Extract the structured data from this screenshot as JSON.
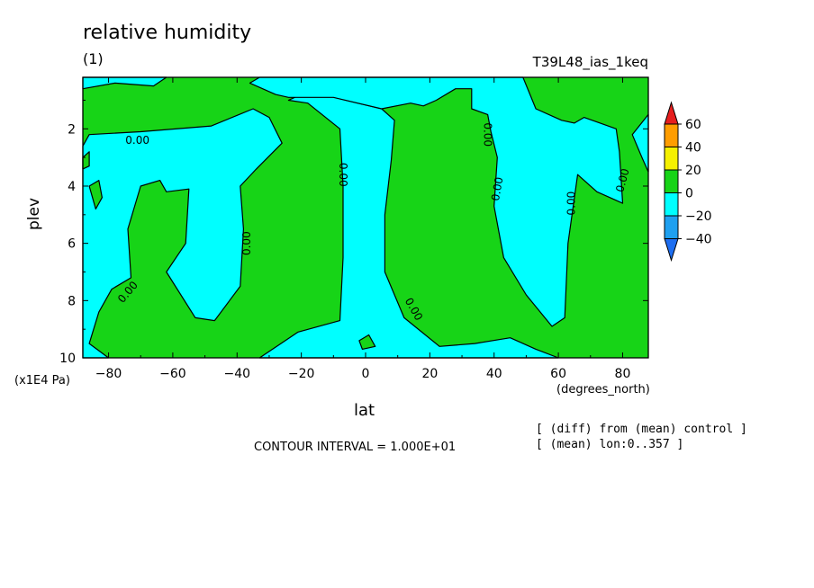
{
  "title": "relative humidity",
  "subtitle": "(1)",
  "experiment": "T39L48_ias_1keq",
  "contour_interval": "CONTOUR INTERVAL = 1.000E+01",
  "notes": [
    "[ (diff) from (mean) control ]",
    "[ (mean) lon:0..357 ]"
  ],
  "colors": {
    "below_m40": "#1e6ef0",
    "m40_m20": "#1fa0f0",
    "m20_0": "#00ffff",
    "0_20": "#17d417",
    "20_40": "#f5f000",
    "40_60": "#ff9d00",
    "above_60": "#e61e1e",
    "contour": "#000000"
  },
  "chart_data": {
    "type": "heatmap",
    "xlabel": "lat",
    "xunit": "(degrees_north)",
    "ylabel": "plev",
    "yunit": "(x1E4 Pa)",
    "xlim": [
      -88,
      88
    ],
    "ylim": [
      10,
      0.2
    ],
    "x_ticks": [
      -80,
      -60,
      -40,
      -20,
      0,
      20,
      40,
      60,
      80
    ],
    "x_tick_labels": [
      "−80",
      "−60",
      "−40",
      "−20",
      "0",
      "20",
      "40",
      "60",
      "80"
    ],
    "y_ticks": [
      2,
      4,
      6,
      8,
      10
    ],
    "y_tick_labels": [
      "2",
      "4",
      "6",
      "8",
      "10"
    ],
    "colorbar": {
      "levels": [
        -40,
        -20,
        0,
        20,
        40,
        60
      ],
      "labels": [
        "60",
        "40",
        "20",
        "0",
        "−20",
        "−40"
      ]
    },
    "contour_labels": [
      "0.00",
      "0.00",
      "0.00",
      "0.00",
      "0.00",
      "0.00",
      "0.00",
      "0.00",
      "0.00"
    ],
    "regions": [
      {
        "name": "negative-band-south-high",
        "sign": "negative",
        "polygon": [
          [
            -88,
            2.6
          ],
          [
            -86,
            2.2
          ],
          [
            -70,
            2.1
          ],
          [
            -48,
            1.9
          ],
          [
            -35,
            1.3
          ],
          [
            -30,
            1.6
          ],
          [
            -26,
            2.5
          ],
          [
            -34,
            3.4
          ],
          [
            -39,
            4.0
          ],
          [
            -38,
            5.5
          ],
          [
            -39,
            7.5
          ],
          [
            -47,
            8.7
          ],
          [
            -53,
            8.6
          ],
          [
            -62,
            7.0
          ],
          [
            -56,
            6.0
          ],
          [
            -55,
            4.1
          ],
          [
            -62,
            4.2
          ],
          [
            -64,
            3.8
          ],
          [
            -70,
            4.0
          ],
          [
            -74,
            5.5
          ],
          [
            -73,
            7.2
          ],
          [
            -79,
            7.6
          ],
          [
            -83,
            8.4
          ],
          [
            -86,
            9.5
          ],
          [
            -80,
            10
          ],
          [
            -88,
            10
          ]
        ]
      },
      {
        "name": "negative-column-equator",
        "sign": "negative",
        "polygon": [
          [
            -24,
            1.0
          ],
          [
            -20,
            0.8
          ],
          [
            -14,
            0.7
          ],
          [
            -6,
            1.0
          ],
          [
            5,
            1.3
          ],
          [
            9,
            1.7
          ],
          [
            8,
            3.1
          ],
          [
            6,
            5.0
          ],
          [
            6,
            7.0
          ],
          [
            12,
            8.6
          ],
          [
            23,
            9.6
          ],
          [
            34,
            9.5
          ],
          [
            45,
            9.3
          ],
          [
            53,
            9.7
          ],
          [
            60,
            10
          ],
          [
            -33,
            10
          ],
          [
            -21,
            9.1
          ],
          [
            -8,
            8.7
          ],
          [
            -7,
            6.5
          ],
          [
            -7,
            4.0
          ],
          [
            -8,
            2.0
          ],
          [
            -18,
            1.1
          ]
        ]
      },
      {
        "name": "negative-wedge-north",
        "sign": "negative",
        "polygon": [
          [
            49,
            0.2
          ],
          [
            53,
            1.3
          ],
          [
            61,
            1.7
          ],
          [
            65,
            1.8
          ],
          [
            68,
            1.6
          ],
          [
            73,
            1.8
          ],
          [
            78,
            2.0
          ],
          [
            79,
            2.8
          ],
          [
            80,
            4.6
          ],
          [
            72,
            4.2
          ],
          [
            66,
            3.6
          ],
          [
            63,
            6.0
          ],
          [
            62,
            8.6
          ],
          [
            58,
            8.9
          ],
          [
            50,
            7.8
          ],
          [
            43,
            6.5
          ],
          [
            40,
            4.7
          ],
          [
            41,
            3.0
          ],
          [
            39,
            2.1
          ],
          [
            38,
            1.5
          ],
          [
            33,
            1.3
          ],
          [
            33,
            0.6
          ],
          [
            28,
            0.6
          ],
          [
            22,
            1.0
          ],
          [
            18,
            1.2
          ],
          [
            14,
            1.1
          ],
          [
            5,
            1.3
          ],
          [
            -10,
            0.9
          ],
          [
            -24,
            0.9
          ],
          [
            -28,
            0.8
          ],
          [
            -36,
            0.4
          ],
          [
            -33,
            0.2
          ]
        ]
      },
      {
        "name": "negative-north-edge",
        "sign": "negative",
        "polygon": [
          [
            83,
            2.2
          ],
          [
            88,
            1.5
          ],
          [
            88,
            3.5
          ],
          [
            86,
            3.0
          ]
        ]
      },
      {
        "name": "negative-south-top-edge",
        "sign": "negative",
        "polygon": [
          [
            -88,
            0.2
          ],
          [
            -62,
            0.2
          ],
          [
            -66,
            0.5
          ],
          [
            -78,
            0.4
          ],
          [
            -88,
            0.6
          ]
        ]
      },
      {
        "name": "green-island-south",
        "sign": "positive",
        "polygon": [
          [
            -86,
            4.0
          ],
          [
            -83,
            3.8
          ],
          [
            -82,
            4.4
          ],
          [
            -84,
            4.8
          ]
        ]
      },
      {
        "name": "green-blob-equator",
        "sign": "positive",
        "polygon": [
          [
            -2,
            9.4
          ],
          [
            1,
            9.2
          ],
          [
            3,
            9.6
          ],
          [
            -1,
            9.7
          ]
        ]
      },
      {
        "name": "green-speck-south-edge",
        "sign": "positive",
        "polygon": [
          [
            -88,
            3.0
          ],
          [
            -86,
            2.8
          ],
          [
            -86,
            3.3
          ],
          [
            -88,
            3.4
          ]
        ]
      }
    ]
  }
}
